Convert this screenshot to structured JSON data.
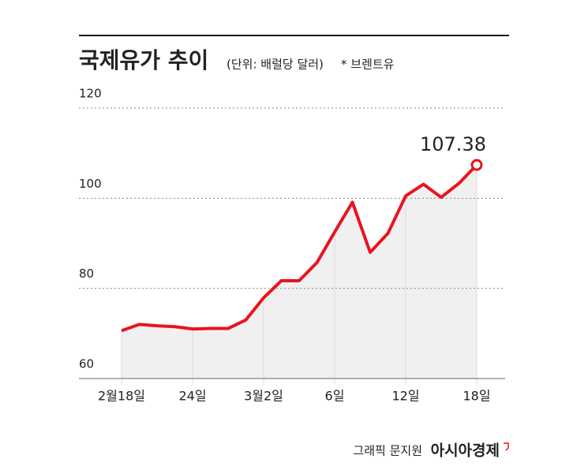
{
  "chart_data": {
    "type": "line",
    "title": "국제유가 추이",
    "subtitle": "(단위: 배럴당 달러)",
    "note": "* 브렌트유",
    "categories": [
      "2월18일",
      null,
      null,
      null,
      "24일",
      null,
      null,
      null,
      "3월2일",
      null,
      null,
      null,
      "6일",
      null,
      null,
      null,
      "12일",
      null,
      null,
      null,
      "18일"
    ],
    "series": [
      {
        "name": "브렌트유",
        "color": "#e8141e",
        "values": [
          70.6,
          72.0,
          71.7,
          71.5,
          71.0,
          71.1,
          71.1,
          73.0,
          77.9,
          81.7,
          81.7,
          85.7,
          92.5,
          99.1,
          88.0,
          92.2,
          100.5,
          103.1,
          100.2,
          103.3,
          107.38
        ]
      }
    ],
    "ylim": [
      60,
      120
    ],
    "yticks": [
      60,
      80,
      100,
      120
    ],
    "grid": true,
    "credit": "그래픽 문지원",
    "source": "아시아경제"
  }
}
